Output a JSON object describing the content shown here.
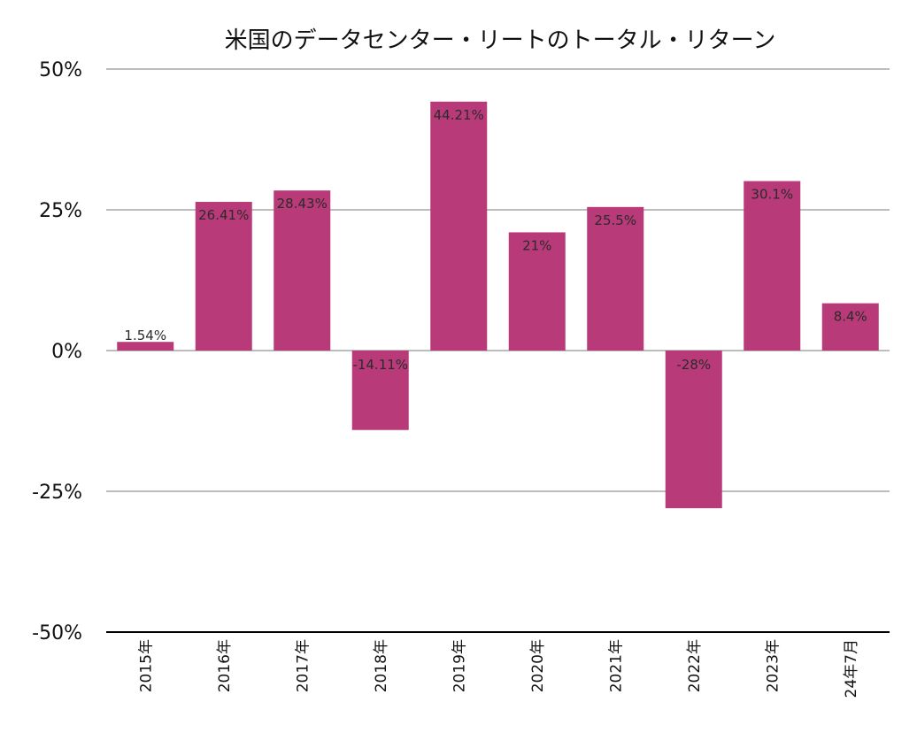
{
  "chart_data": {
    "type": "bar",
    "title": "米国のデータセンター・リートのトータル・リターン",
    "xlabel": "",
    "ylabel": "",
    "categories": [
      "2015年",
      "2016年",
      "2017年",
      "2018年",
      "2019年",
      "2020年",
      "2021年",
      "2022年",
      "2023年",
      "24年7月"
    ],
    "values": [
      1.54,
      26.41,
      28.43,
      -14.11,
      44.21,
      21,
      25.5,
      -28,
      30.1,
      8.4
    ],
    "data_labels": [
      "1.54%",
      "26.41%",
      "28.43%",
      "-14.11%",
      "44.21%",
      "21%",
      "25.5%",
      "-28%",
      "30.1%",
      "8.4%"
    ],
    "ylim": [
      -50,
      50
    ],
    "y_ticks": [
      50,
      25,
      0,
      -25,
      -50
    ],
    "y_tick_labels": [
      "50%",
      "25%",
      "0%",
      "-25%",
      "-50%"
    ],
    "grid": true,
    "legend": "none",
    "colors": {
      "bar": "#B83A78",
      "grid": "#BDBDBD",
      "axis": "#000000"
    }
  }
}
